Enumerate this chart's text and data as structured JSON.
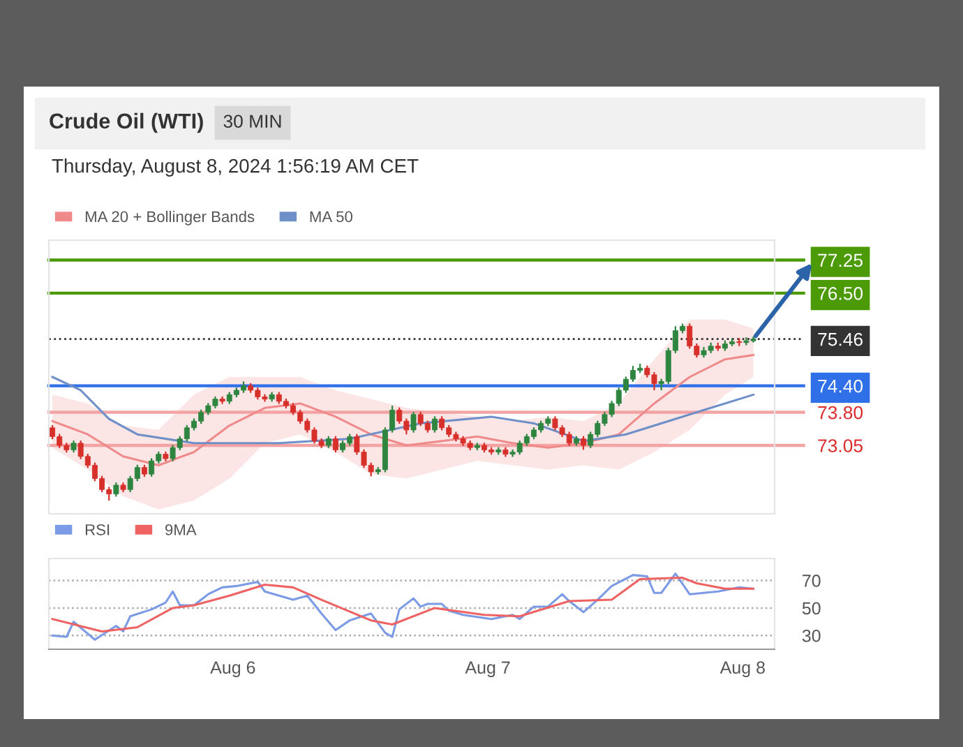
{
  "chart_data": [
    {
      "type": "candlestick",
      "title": "Crude Oil (WTI)",
      "subtitle": "Thursday, August 8, 2024 1:56:19 AM CET",
      "annotations": [
        "30 MIN"
      ],
      "x": [
        "2024-08-05T07:00",
        "2024-08-05T07:40",
        "2024-08-05T08:20",
        "2024-08-05T09:00",
        "2024-08-05T09:40",
        "2024-08-05T10:20",
        "2024-08-05T11:00",
        "2024-08-05T11:40",
        "2024-08-05T12:20",
        "2024-08-05T13:00",
        "2024-08-05T13:40",
        "2024-08-05T14:20",
        "2024-08-05T15:00",
        "2024-08-05T15:40",
        "2024-08-05T16:20",
        "2024-08-05T17:00",
        "2024-08-05T17:40",
        "2024-08-05T18:20",
        "2024-08-05T19:00",
        "2024-08-05T19:40",
        "2024-08-05T20:20",
        "2024-08-05T21:00",
        "2024-08-05T21:40",
        "2024-08-05T22:20",
        "2024-08-05T23:00",
        "2024-08-05T23:40",
        "2024-08-06T00:20",
        "2024-08-06T01:00",
        "2024-08-06T01:40",
        "2024-08-06T02:20",
        "2024-08-06T03:00",
        "2024-08-06T03:40",
        "2024-08-06T04:20",
        "2024-08-06T05:00",
        "2024-08-06T05:40",
        "2024-08-06T06:20",
        "2024-08-06T07:00",
        "2024-08-06T07:40",
        "2024-08-06T08:20",
        "2024-08-06T09:00",
        "2024-08-06T09:40",
        "2024-08-06T10:20",
        "2024-08-06T11:00",
        "2024-08-06T11:40",
        "2024-08-06T12:20",
        "2024-08-06T13:00",
        "2024-08-06T13:40",
        "2024-08-06T14:20",
        "2024-08-06T15:00",
        "2024-08-06T15:40",
        "2024-08-06T16:20",
        "2024-08-06T17:00",
        "2024-08-06T17:40",
        "2024-08-06T18:20",
        "2024-08-06T19:00",
        "2024-08-06T19:40",
        "2024-08-06T20:20",
        "2024-08-06T21:00",
        "2024-08-06T21:40",
        "2024-08-06T22:20",
        "2024-08-06T23:00",
        "2024-08-06T23:40",
        "2024-08-07T00:20",
        "2024-08-07T01:00",
        "2024-08-07T01:40",
        "2024-08-07T02:20",
        "2024-08-07T03:00",
        "2024-08-07T03:40",
        "2024-08-07T04:20",
        "2024-08-07T05:00",
        "2024-08-07T05:40",
        "2024-08-07T06:20",
        "2024-08-07T07:00",
        "2024-08-07T07:40",
        "2024-08-07T08:20",
        "2024-08-07T09:00",
        "2024-08-07T09:40",
        "2024-08-07T10:20",
        "2024-08-07T11:00",
        "2024-08-07T11:40",
        "2024-08-07T12:20",
        "2024-08-07T13:00",
        "2024-08-07T13:40",
        "2024-08-07T14:20",
        "2024-08-07T15:00",
        "2024-08-07T15:40",
        "2024-08-07T16:20",
        "2024-08-07T17:00",
        "2024-08-07T17:40",
        "2024-08-07T18:20",
        "2024-08-07T19:00",
        "2024-08-07T19:40",
        "2024-08-07T20:20",
        "2024-08-07T21:00",
        "2024-08-07T21:40",
        "2024-08-07T22:20",
        "2024-08-07T23:00",
        "2024-08-07T23:40",
        "2024-08-08T00:20",
        "2024-08-08T01:00"
      ],
      "ohlc": [
        [
          73.45,
          73.51,
          73.19,
          73.25
        ],
        [
          73.25,
          73.31,
          72.99,
          73.05
        ],
        [
          73.05,
          73.11,
          72.89,
          72.95
        ],
        [
          72.95,
          73.16,
          72.89,
          73.1
        ],
        [
          73.1,
          73.16,
          72.74,
          72.8
        ],
        [
          72.8,
          72.86,
          72.54,
          72.6
        ],
        [
          72.6,
          72.66,
          72.24,
          72.3
        ],
        [
          72.3,
          72.36,
          71.99,
          72.05
        ],
        [
          72.05,
          72.11,
          71.8,
          71.95
        ],
        [
          71.95,
          72.21,
          71.89,
          72.15
        ],
        [
          72.15,
          72.21,
          71.99,
          72.05
        ],
        [
          72.05,
          72.36,
          71.99,
          72.3
        ],
        [
          72.3,
          72.61,
          72.24,
          72.55
        ],
        [
          72.55,
          72.61,
          72.34,
          72.4
        ],
        [
          72.4,
          72.76,
          72.34,
          72.7
        ],
        [
          72.7,
          72.91,
          72.64,
          72.85
        ],
        [
          72.85,
          72.91,
          72.69,
          72.75
        ],
        [
          72.75,
          73.06,
          72.69,
          73.0
        ],
        [
          73.0,
          73.26,
          72.94,
          73.2
        ],
        [
          73.2,
          73.51,
          73.14,
          73.45
        ],
        [
          73.45,
          73.66,
          73.39,
          73.6
        ],
        [
          73.6,
          73.86,
          73.54,
          73.8
        ],
        [
          73.8,
          74.01,
          73.74,
          73.95
        ],
        [
          73.95,
          74.16,
          73.89,
          74.1
        ],
        [
          74.1,
          74.16,
          73.99,
          74.05
        ],
        [
          74.05,
          74.26,
          73.99,
          74.2
        ],
        [
          74.2,
          74.36,
          74.14,
          74.3
        ],
        [
          74.3,
          74.5,
          74.24,
          74.4
        ],
        [
          74.4,
          74.46,
          74.24,
          74.3
        ],
        [
          74.3,
          74.36,
          74.09,
          74.15
        ],
        [
          74.15,
          74.21,
          74.04,
          74.1
        ],
        [
          74.1,
          74.26,
          74.04,
          74.2
        ],
        [
          74.2,
          74.26,
          73.99,
          74.05
        ],
        [
          74.05,
          74.11,
          73.89,
          73.95
        ],
        [
          73.95,
          74.01,
          73.74,
          73.8
        ],
        [
          73.8,
          73.86,
          73.54,
          73.6
        ],
        [
          73.6,
          73.66,
          73.34,
          73.4
        ],
        [
          73.4,
          73.46,
          73.09,
          73.15
        ],
        [
          73.15,
          73.21,
          72.99,
          73.05
        ],
        [
          73.05,
          73.26,
          72.99,
          73.2
        ],
        [
          73.2,
          73.26,
          72.89,
          72.95
        ],
        [
          72.95,
          73.16,
          72.89,
          73.1
        ],
        [
          73.1,
          73.31,
          73.04,
          73.25
        ],
        [
          73.25,
          73.31,
          72.84,
          72.9
        ],
        [
          72.9,
          72.96,
          72.54,
          72.6
        ],
        [
          72.6,
          72.66,
          72.35,
          72.45
        ],
        [
          72.45,
          72.56,
          72.39,
          72.5
        ],
        [
          72.5,
          73.46,
          72.44,
          73.4
        ],
        [
          73.4,
          73.95,
          73.34,
          73.85
        ],
        [
          73.85,
          73.91,
          73.54,
          73.6
        ],
        [
          73.6,
          73.66,
          73.3,
          73.4
        ],
        [
          73.4,
          73.81,
          73.34,
          73.75
        ],
        [
          73.75,
          73.81,
          73.49,
          73.55
        ],
        [
          73.55,
          73.61,
          73.34,
          73.4
        ],
        [
          73.4,
          73.71,
          73.34,
          73.65
        ],
        [
          73.65,
          73.71,
          73.39,
          73.45
        ],
        [
          73.45,
          73.51,
          73.24,
          73.3
        ],
        [
          73.3,
          73.36,
          73.14,
          73.2
        ],
        [
          73.2,
          73.26,
          73.04,
          73.1
        ],
        [
          73.1,
          73.16,
          72.94,
          73.0
        ],
        [
          73.0,
          73.11,
          72.94,
          73.05
        ],
        [
          73.05,
          73.11,
          72.89,
          72.95
        ],
        [
          72.95,
          73.01,
          72.84,
          72.9
        ],
        [
          72.9,
          73.01,
          72.84,
          72.95
        ],
        [
          72.95,
          73.01,
          72.79,
          72.85
        ],
        [
          72.85,
          72.96,
          72.79,
          72.9
        ],
        [
          72.9,
          73.16,
          72.84,
          73.1
        ],
        [
          73.1,
          73.31,
          73.04,
          73.25
        ],
        [
          73.25,
          73.46,
          73.19,
          73.4
        ],
        [
          73.4,
          73.61,
          73.34,
          73.55
        ],
        [
          73.55,
          73.71,
          73.49,
          73.65
        ],
        [
          73.65,
          73.71,
          73.39,
          73.45
        ],
        [
          73.45,
          73.51,
          73.24,
          73.3
        ],
        [
          73.3,
          73.36,
          73.04,
          73.1
        ],
        [
          73.1,
          73.26,
          73.04,
          73.2
        ],
        [
          73.2,
          73.26,
          72.95,
          73.05
        ],
        [
          73.05,
          73.36,
          72.99,
          73.3
        ],
        [
          73.3,
          73.61,
          73.24,
          73.55
        ],
        [
          73.55,
          73.81,
          73.49,
          73.75
        ],
        [
          73.75,
          74.06,
          73.69,
          74.0
        ],
        [
          74.0,
          74.36,
          73.94,
          74.3
        ],
        [
          74.3,
          74.61,
          74.24,
          74.55
        ],
        [
          74.55,
          74.85,
          74.49,
          74.75
        ],
        [
          74.75,
          74.9,
          74.69,
          74.8
        ],
        [
          74.8,
          74.86,
          74.59,
          74.65
        ],
        [
          74.65,
          74.71,
          74.3,
          74.45
        ],
        [
          74.45,
          74.56,
          74.3,
          74.5
        ],
        [
          74.5,
          75.26,
          74.44,
          75.2
        ],
        [
          75.2,
          75.75,
          75.14,
          75.65
        ],
        [
          75.65,
          75.81,
          75.59,
          75.75
        ],
        [
          75.75,
          75.81,
          75.24,
          75.3
        ],
        [
          75.3,
          75.36,
          75.04,
          75.1
        ],
        [
          75.1,
          75.28,
          75.04,
          75.2
        ],
        [
          75.2,
          75.38,
          75.14,
          75.3
        ],
        [
          75.3,
          75.38,
          75.19,
          75.25
        ],
        [
          75.25,
          75.43,
          75.19,
          75.35
        ],
        [
          75.35,
          75.48,
          75.3,
          75.4
        ],
        [
          75.4,
          75.48,
          75.3,
          75.38
        ],
        [
          75.38,
          75.5,
          75.32,
          75.42
        ],
        [
          75.42,
          75.52,
          75.38,
          75.46
        ]
      ],
      "colors": [
        "#d7302b",
        "#d7302b",
        "#d7302b",
        "#2e8540",
        "#d7302b",
        "#d7302b",
        "#d7302b",
        "#d7302b",
        "#d7302b",
        "#2e8540",
        "#d7302b",
        "#2e8540",
        "#2e8540",
        "#d7302b",
        "#2e8540",
        "#2e8540",
        "#d7302b",
        "#2e8540",
        "#2e8540",
        "#2e8540",
        "#2e8540",
        "#2e8540",
        "#2e8540",
        "#2e8540",
        "#d7302b",
        "#2e8540",
        "#2e8540",
        "#2e8540",
        "#d7302b",
        "#d7302b",
        "#d7302b",
        "#2e8540",
        "#d7302b",
        "#d7302b",
        "#d7302b",
        "#d7302b",
        "#d7302b",
        "#d7302b",
        "#d7302b",
        "#2e8540",
        "#d7302b",
        "#2e8540",
        "#2e8540",
        "#d7302b",
        "#d7302b",
        "#d7302b",
        "#2e8540",
        "#2e8540",
        "#2e8540",
        "#d7302b",
        "#d7302b",
        "#2e8540",
        "#d7302b",
        "#d7302b",
        "#2e8540",
        "#d7302b",
        "#d7302b",
        "#d7302b",
        "#d7302b",
        "#d7302b",
        "#2e8540",
        "#d7302b",
        "#d7302b",
        "#2e8540",
        "#d7302b",
        "#2e8540",
        "#2e8540",
        "#2e8540",
        "#2e8540",
        "#2e8540",
        "#2e8540",
        "#d7302b",
        "#d7302b",
        "#d7302b",
        "#2e8540",
        "#d7302b",
        "#2e8540",
        "#2e8540",
        "#2e8540",
        "#2e8540",
        "#2e8540",
        "#2e8540",
        "#2e8540",
        "#2e8540",
        "#d7302b",
        "#d7302b",
        "#2e8540",
        "#2e8540",
        "#2e8540",
        "#2e8540",
        "#d7302b",
        "#d7302b",
        "#2e8540",
        "#2e8540",
        "#d7302b",
        "#2e8540",
        "#2e8540",
        "#d7302b",
        "#2e8540",
        "#2e8540"
      ],
      "series": [
        {
          "name": "MA 20 + Bollinger Bands",
          "type": "line",
          "color": "#f08a8a",
          "x": [
            "2024-08-05T07:00",
            "2024-08-05T10:20",
            "2024-08-05T13:40",
            "2024-08-05T17:00",
            "2024-08-05T20:20",
            "2024-08-05T23:40",
            "2024-08-06T03:00",
            "2024-08-06T06:20",
            "2024-08-06T09:40",
            "2024-08-06T13:00",
            "2024-08-06T16:20",
            "2024-08-06T19:40",
            "2024-08-06T23:00",
            "2024-08-07T02:20",
            "2024-08-07T05:40",
            "2024-08-07T09:00",
            "2024-08-07T12:20",
            "2024-08-07T15:40",
            "2024-08-07T19:00",
            "2024-08-07T22:20",
            "2024-08-08T01:00"
          ],
          "values": [
            73.6,
            73.3,
            72.8,
            72.6,
            72.9,
            73.5,
            73.9,
            74.0,
            73.7,
            73.3,
            73.05,
            73.15,
            73.25,
            73.1,
            73.0,
            73.1,
            73.3,
            74.0,
            74.6,
            75.0,
            75.1
          ],
          "lower": [
            73.0,
            72.5,
            71.9,
            71.6,
            71.8,
            72.3,
            73.1,
            73.3,
            72.9,
            72.4,
            72.3,
            72.5,
            72.7,
            72.6,
            72.5,
            72.6,
            72.5,
            72.9,
            73.4,
            74.2,
            74.6
          ],
          "upper": [
            74.2,
            74.0,
            73.5,
            73.4,
            74.2,
            74.6,
            74.6,
            74.6,
            74.3,
            74.1,
            73.9,
            73.8,
            73.7,
            73.6,
            73.7,
            73.6,
            74.0,
            75.0,
            75.9,
            75.9,
            75.7
          ]
        },
        {
          "name": "MA 50",
          "type": "line",
          "color": "#6f8fc8",
          "x": [
            "2024-08-05T07:00",
            "2024-08-05T09:40",
            "2024-08-05T12:20",
            "2024-08-05T15:00",
            "2024-08-05T20:20",
            "2024-08-06T04:20",
            "2024-08-06T11:00",
            "2024-08-06T17:40",
            "2024-08-07T00:20",
            "2024-08-07T04:20",
            "2024-08-07T09:00",
            "2024-08-07T13:00",
            "2024-08-07T17:00",
            "2024-08-07T21:00",
            "2024-08-08T01:00"
          ],
          "values": [
            74.6,
            74.3,
            73.65,
            73.3,
            73.1,
            73.1,
            73.2,
            73.55,
            73.7,
            73.55,
            73.15,
            73.3,
            73.6,
            73.9,
            74.2
          ]
        }
      ],
      "xlim": [
        "2024-08-05T06:40",
        "2024-08-08T03:00"
      ],
      "ylim": [
        71.5,
        77.7
      ],
      "yticks": [
        77.25,
        {
          "value": 76.5,
          "label": "76.50"
        },
        75.46,
        {
          "value": 74.4,
          "label": "74.40"
        },
        {
          "value": 73.8,
          "label": "73.80"
        },
        73.05
      ],
      "ref_lines": [
        {
          "axis": "y",
          "value": 77.25,
          "color": "#4b9a06",
          "line_style": "solid"
        },
        {
          "axis": "y",
          "value": 76.5,
          "color": "#4b9a06",
          "line_style": "solid"
        },
        {
          "axis": "y",
          "value": 75.46,
          "color": "#333333",
          "line_style": "dotted"
        },
        {
          "axis": "y",
          "value": 74.4,
          "color": "#2f6fe8",
          "line_style": "solid"
        },
        {
          "axis": "y",
          "value": 73.8,
          "color": "#f4a3a3",
          "line_style": "solid"
        },
        {
          "axis": "y",
          "value": 73.05,
          "color": "#f4a3a3",
          "line_style": "solid"
        }
      ],
      "legend": "top left",
      "tick_labels": "y"
    },
    {
      "type": "line",
      "series": [
        {
          "name": "RSI",
          "color": "#7b9be6",
          "x": [
            "2024-08-05T07:00",
            "2024-08-05T08:20",
            "2024-08-05T09:00",
            "2024-08-05T11:00",
            "2024-08-05T13:00",
            "2024-08-05T13:40",
            "2024-08-05T14:20",
            "2024-08-05T16:20",
            "2024-08-05T17:40",
            "2024-08-05T18:20",
            "2024-08-05T19:00",
            "2024-08-05T20:20",
            "2024-08-05T21:40",
            "2024-08-05T23:00",
            "2024-08-06T00:20",
            "2024-08-06T02:20",
            "2024-08-06T03:00",
            "2024-08-06T05:40",
            "2024-08-06T07:00",
            "2024-08-06T08:20",
            "2024-08-06T09:40",
            "2024-08-06T11:00",
            "2024-08-06T13:00",
            "2024-08-06T14:20",
            "2024-08-06T15:00",
            "2024-08-06T15:40",
            "2024-08-06T17:00",
            "2024-08-06T17:40",
            "2024-08-06T18:20",
            "2024-08-06T19:40",
            "2024-08-06T20:20",
            "2024-08-06T21:40",
            "2024-08-07T00:20",
            "2024-08-07T02:20",
            "2024-08-07T03:00",
            "2024-08-07T04:20",
            "2024-08-07T05:40",
            "2024-08-07T07:00",
            "2024-08-07T07:40",
            "2024-08-07T09:00",
            "2024-08-07T10:20",
            "2024-08-07T11:40",
            "2024-08-07T13:40",
            "2024-08-07T15:00",
            "2024-08-07T15:40",
            "2024-08-07T16:20",
            "2024-08-07T17:40",
            "2024-08-07T19:00",
            "2024-08-07T21:40",
            "2024-08-07T23:40",
            "2024-08-08T01:00"
          ],
          "values": [
            30,
            29,
            40,
            27,
            37,
            33,
            44,
            49,
            54,
            62,
            52,
            52,
            60,
            65,
            66,
            69,
            62,
            56,
            59,
            46,
            34,
            41,
            46,
            32,
            29,
            49,
            57,
            51,
            53,
            53,
            48,
            45,
            42,
            45,
            42,
            51,
            51,
            60,
            55,
            47,
            56,
            66,
            74,
            73,
            61,
            61,
            75,
            60,
            62,
            65,
            64
          ]
        },
        {
          "name": "9MA",
          "color": "#ef6262",
          "x": [
            "2024-08-05T07:00",
            "2024-08-05T11:40",
            "2024-08-05T15:00",
            "2024-08-05T18:20",
            "2024-08-05T20:20",
            "2024-08-05T23:40",
            "2024-08-06T03:00",
            "2024-08-06T05:40",
            "2024-08-06T08:20",
            "2024-08-06T13:00",
            "2024-08-06T15:00",
            "2024-08-06T19:00",
            "2024-08-06T23:40",
            "2024-08-07T03:00",
            "2024-08-07T07:40",
            "2024-08-07T11:40",
            "2024-08-07T14:20",
            "2024-08-07T18:20",
            "2024-08-07T19:40",
            "2024-08-07T22:20",
            "2024-08-08T01:00"
          ],
          "values": [
            42,
            33,
            36,
            50,
            52,
            59,
            67,
            65,
            56,
            41,
            38,
            50,
            45,
            44,
            55,
            56,
            71,
            72,
            68,
            64,
            64
          ]
        }
      ],
      "xlim": [
        "2024-08-05T06:40",
        "2024-08-08T03:00"
      ],
      "xticks": [
        {
          "value": "2024-08-06",
          "label": "Aug 6"
        },
        {
          "value": "2024-08-07",
          "label": "Aug 7"
        },
        {
          "value": "2024-08-08",
          "label": "Aug 8"
        }
      ],
      "ylim": [
        20,
        86
      ],
      "yticks": [
        30,
        50,
        70
      ],
      "grid": "y",
      "legend": "top left"
    }
  ]
}
